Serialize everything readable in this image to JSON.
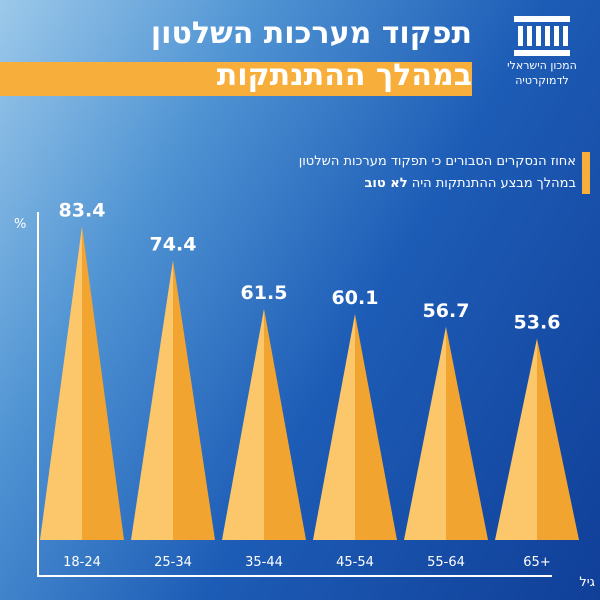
{
  "logo": {
    "line1": "המכון הישראלי",
    "line2": "לדמוקרטיה"
  },
  "title": {
    "line1": "תפקוד מערכות השלטון",
    "line2": "במהלך ההתנתקות"
  },
  "subtitle": {
    "line1": "אחוז הנסקרים הסבורים כי תפקוד מערכות השלטון",
    "line2_prefix": "במהלך מבצע ההתנתקות היה ",
    "line2_bold": "לא טוב"
  },
  "colors": {
    "accent": "#f7ae3b",
    "cone_light": "#fcc66a",
    "cone_dark": "#f2a431",
    "axis": "#ffffff"
  },
  "chart_data": {
    "type": "bar",
    "categories": [
      "18-24",
      "25-34",
      "35-44",
      "45-54",
      "55-64",
      "65+"
    ],
    "values": [
      83.4,
      74.4,
      61.5,
      60.1,
      56.7,
      53.6
    ],
    "value_labels": [
      "83.4",
      "74.4",
      "61.5",
      "60.1",
      "56.7",
      "53.6"
    ],
    "ylabel": "%",
    "xlabel": "גיל",
    "ylim": [
      0,
      100
    ],
    "grid": false,
    "legend": "none"
  }
}
